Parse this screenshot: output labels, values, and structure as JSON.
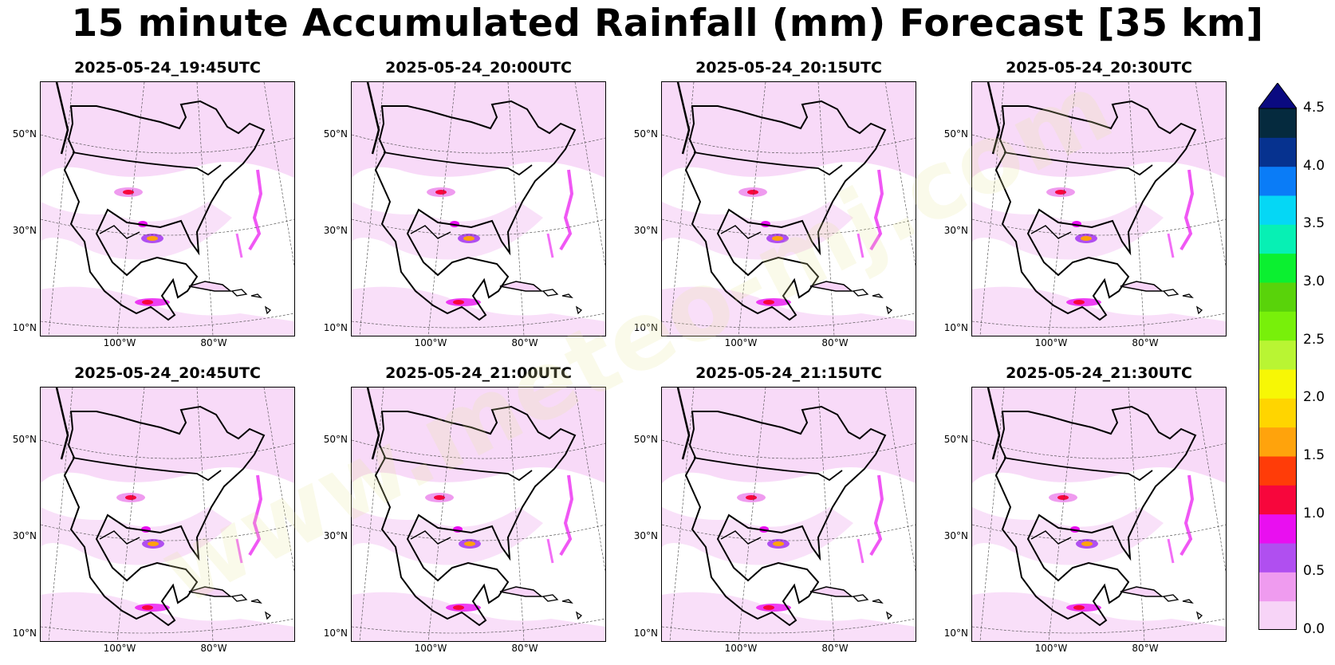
{
  "title": "15 minute Accumulated Rainfall (mm) Forecast [35 km]",
  "panels": [
    {
      "label": "2025-05-24_19:45UTC"
    },
    {
      "label": "2025-05-24_20:00UTC"
    },
    {
      "label": "2025-05-24_20:15UTC"
    },
    {
      "label": "2025-05-24_20:30UTC"
    },
    {
      "label": "2025-05-24_20:45UTC"
    },
    {
      "label": "2025-05-24_21:00UTC"
    },
    {
      "label": "2025-05-24_21:15UTC"
    },
    {
      "label": "2025-05-24_21:30UTC"
    }
  ],
  "lat_labels": [
    "50°N",
    "30°N",
    "10°N"
  ],
  "lon_labels": [
    "100°W",
    "80°W"
  ],
  "colorbar": {
    "ticks": [
      "4.5",
      "4.0",
      "3.5",
      "3.0",
      "2.5",
      "2.0",
      "1.5",
      "1.0",
      "0.5",
      "0.0"
    ],
    "colors_bottom_to_top": [
      "#f7d4f7",
      "#ef9bef",
      "#b04ff0",
      "#e90ff0",
      "#f7063c",
      "#ff3c08",
      "#ffa30c",
      "#ffd500",
      "#f7f705",
      "#b9f533",
      "#78f00a",
      "#59d30a",
      "#0bf030",
      "#07f0b4",
      "#05d7f5",
      "#0a7cf7",
      "#06328f",
      "#052a3e"
    ],
    "extend_color": "#0a0a80"
  },
  "watermark": "www.meteo-mj.com"
}
